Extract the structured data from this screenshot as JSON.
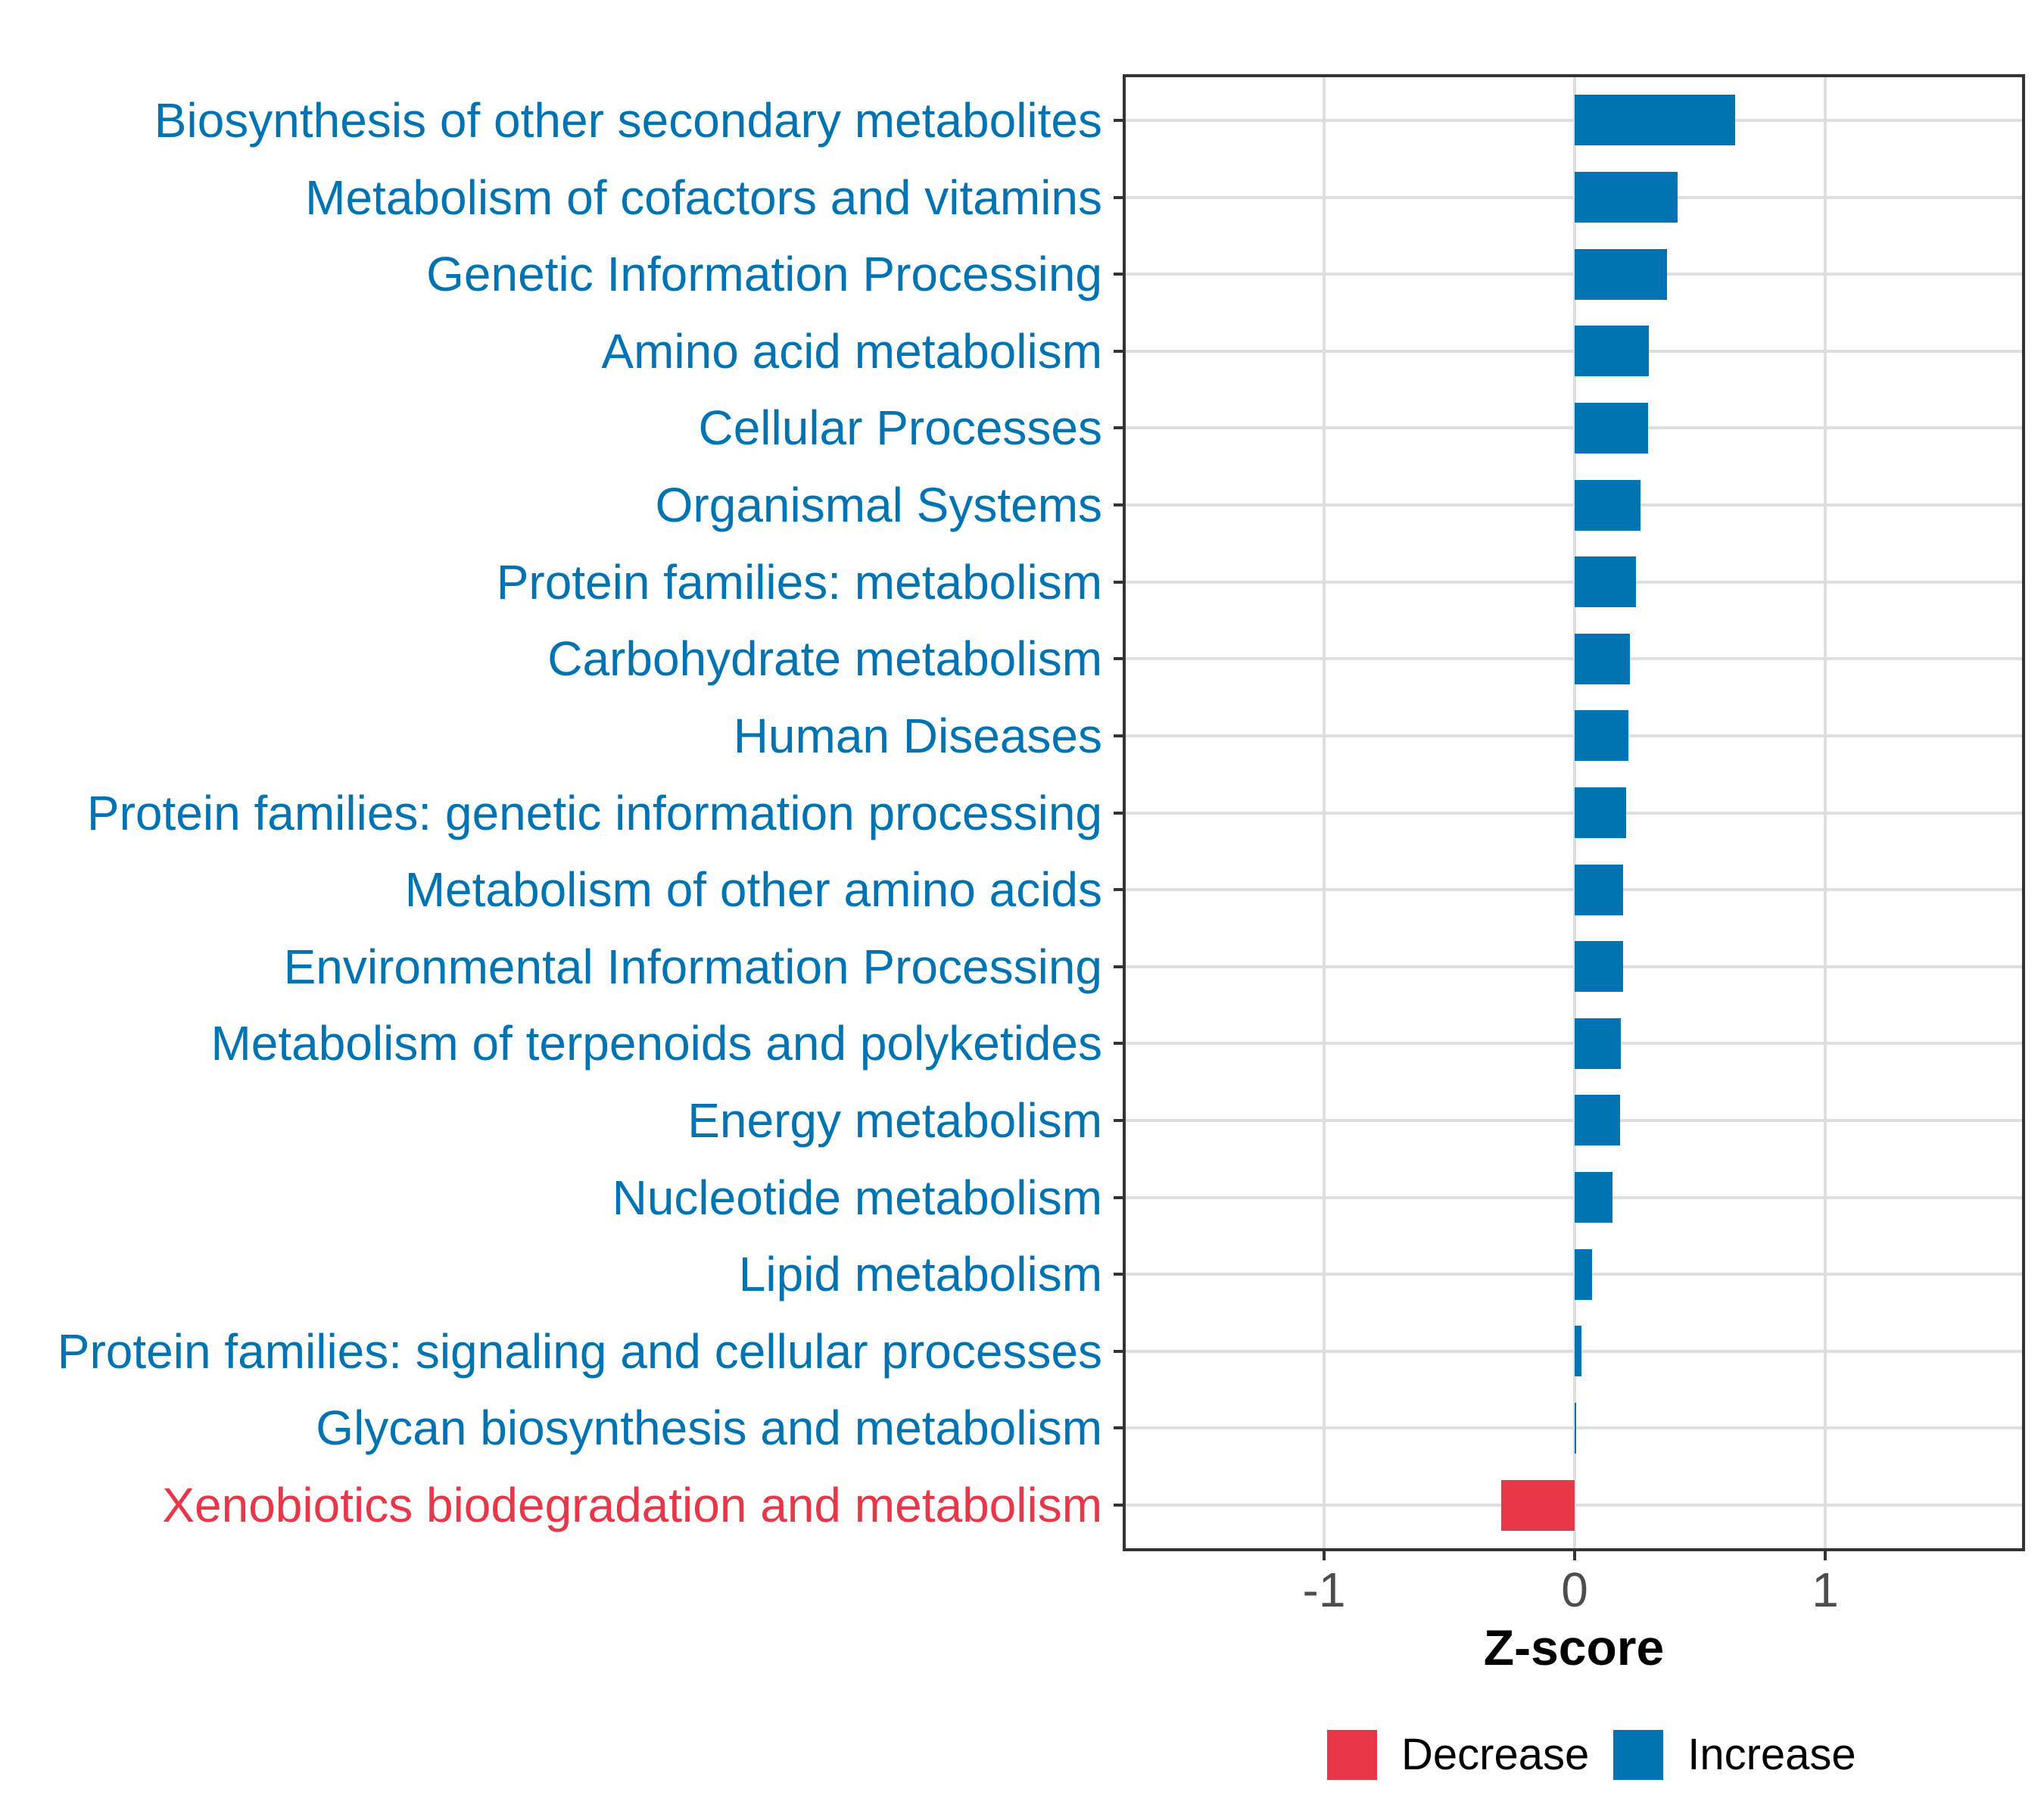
{
  "chart_data": {
    "type": "bar",
    "orientation": "horizontal",
    "title": "",
    "xlabel": "Z-score",
    "ylabel": "",
    "x_axis": {
      "ticks": [
        -1,
        0,
        1
      ],
      "range": [
        -1.8,
        1.8
      ]
    },
    "grid": "major",
    "legend_position": "bottom",
    "legend": [
      {
        "label": "Decrease",
        "color": "#E83749"
      },
      {
        "label": "Increase",
        "color": "#0073B2"
      }
    ],
    "colors": {
      "increase": "#0073B2",
      "decrease": "#E83749",
      "axis_text": "#4D4D4D",
      "axis_title": "#000000",
      "grid": "#DEDEDE",
      "panel_border": "#333333",
      "background": "#FFFFFF"
    },
    "categories": [
      "Biosynthesis of other secondary metabolites",
      "Metabolism of cofactors and vitamins",
      "Genetic Information Processing",
      "Amino acid metabolism",
      "Cellular Processes",
      "Organismal Systems",
      "Protein families: metabolism",
      "Carbohydrate metabolism",
      "Human Diseases",
      "Protein families: genetic information processing",
      "Metabolism of other amino acids",
      "Environmental Information Processing",
      "Metabolism of terpenoids and polyketides",
      "Energy metabolism",
      "Nucleotide metabolism",
      "Lipid metabolism",
      "Protein families: signaling and cellular processes",
      "Glycan biosynthesis and metabolism",
      "Xenobiotics biodegradation and metabolism"
    ],
    "values": [
      0.64,
      0.41,
      0.37,
      0.296,
      0.293,
      0.263,
      0.244,
      0.22,
      0.214,
      0.205,
      0.193,
      0.192,
      0.185,
      0.18,
      0.15,
      0.07,
      0.027,
      0.004,
      -0.293
    ]
  }
}
